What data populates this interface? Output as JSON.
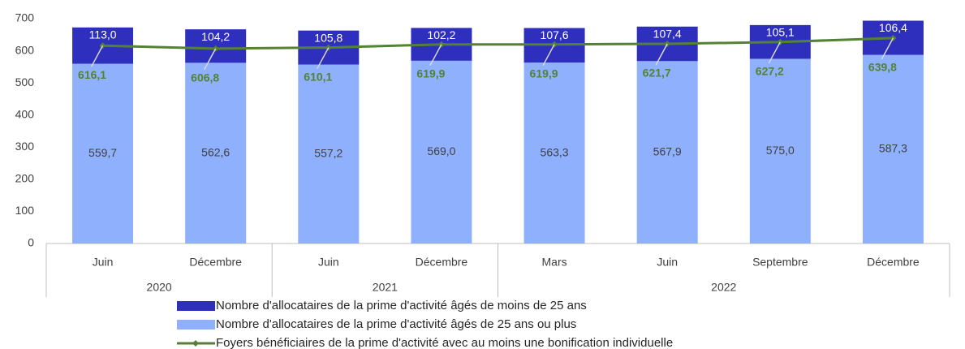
{
  "chart_data": {
    "type": "bar",
    "stacked": true,
    "groups": [
      {
        "name": "2020",
        "categories": [
          "Juin",
          "Décembre"
        ]
      },
      {
        "name": "2021",
        "categories": [
          "Juin",
          "Décembre"
        ]
      },
      {
        "name": "2022",
        "categories": [
          "Mars",
          "Juin",
          "Septembre",
          "Décembre"
        ]
      }
    ],
    "ylim": [
      0,
      700
    ],
    "yticks": [
      0,
      100,
      200,
      300,
      400,
      500,
      600,
      700
    ],
    "grid": false,
    "series": [
      {
        "name": "Nombre d'allocataires de la prime d'activité âgés de moins de 25 ans",
        "type": "bar",
        "color": "#2f2fbd",
        "values": [
          113.0,
          104.2,
          105.8,
          102.2,
          107.6,
          107.4,
          105.1,
          106.4
        ],
        "value_labels": [
          "113,0",
          "104,2",
          "105,8",
          "102,2",
          "107,6",
          "107,4",
          "105,1",
          "106,4"
        ]
      },
      {
        "name": "Nombre d'allocataires de la prime d'activité âgés de 25 ans ou plus",
        "type": "bar",
        "color": "#8fb0fc",
        "values": [
          559.7,
          562.6,
          557.2,
          569.0,
          563.3,
          567.9,
          575.0,
          587.3
        ],
        "value_labels": [
          "559,7",
          "562,6",
          "557,2",
          "569,0",
          "563,3",
          "567,9",
          "575,0",
          "587,3"
        ]
      },
      {
        "name": "Foyers bénéficiaires de la prime d'activité avec au moins une bonification individuelle",
        "type": "line",
        "color": "#548235",
        "values": [
          616.1,
          606.8,
          610.1,
          619.9,
          619.9,
          621.7,
          627.2,
          639.8
        ],
        "value_labels": [
          "616,1",
          "606,8",
          "610,1",
          "619,9",
          "619,9",
          "621,7",
          "627,2",
          "639,8"
        ]
      }
    ]
  }
}
